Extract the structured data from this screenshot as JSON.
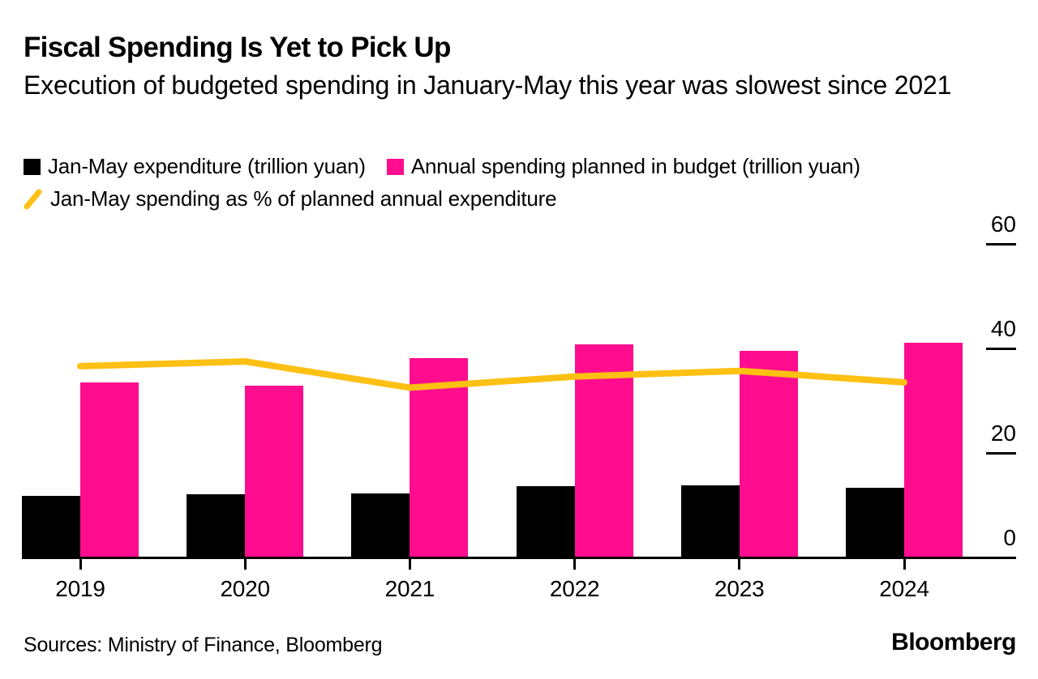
{
  "header": {
    "title": "Fiscal Spending Is Yet to Pick Up",
    "subtitle": "Execution of budgeted spending in January-May this year was slowest since 2021"
  },
  "colors": {
    "expenditure_bar": "#000000",
    "budget_bar": "#ff0d8e",
    "percent_line": "#fdc013",
    "text": "#000000",
    "background": "#ffffff"
  },
  "legend": {
    "items": [
      {
        "label": "Jan-May expenditure (trillion yuan)",
        "swatch": "black-square",
        "color": "#000000"
      },
      {
        "label": "Annual spending planned in budget (trillion yuan)",
        "swatch": "pink-square",
        "color": "#ff0d8e"
      },
      {
        "label": "Jan-May spending as % of planned annual expenditure",
        "swatch": "yellow-line",
        "color": "#fdc013"
      }
    ]
  },
  "chart_data": {
    "type": "bar",
    "categories": [
      "2019",
      "2020",
      "2021",
      "2022",
      "2023",
      "2024"
    ],
    "series": [
      {
        "name": "Jan-May expenditure (trillion yuan)",
        "type": "bar",
        "color": "#000000",
        "values": [
          11.8,
          12.1,
          12.2,
          13.6,
          13.8,
          13.3
        ]
      },
      {
        "name": "Annual spending planned in budget (trillion yuan)",
        "type": "bar",
        "color": "#ff0d8e",
        "values": [
          33.5,
          32.9,
          38.2,
          40.8,
          39.5,
          41.1
        ]
      },
      {
        "name": "Jan-May spending as % of planned annual expenditure",
        "type": "line",
        "color": "#fdc013",
        "values": [
          36.6,
          37.5,
          32.5,
          34.6,
          35.7,
          33.5
        ]
      }
    ],
    "yaxis": {
      "range": [
        0,
        60
      ],
      "ticks": [
        0,
        20,
        40,
        60
      ],
      "position": "right"
    },
    "grid": false,
    "legend_position": "top"
  },
  "footer": {
    "sources": "Sources: Ministry of Finance, Bloomberg",
    "brand": "Bloomberg"
  }
}
